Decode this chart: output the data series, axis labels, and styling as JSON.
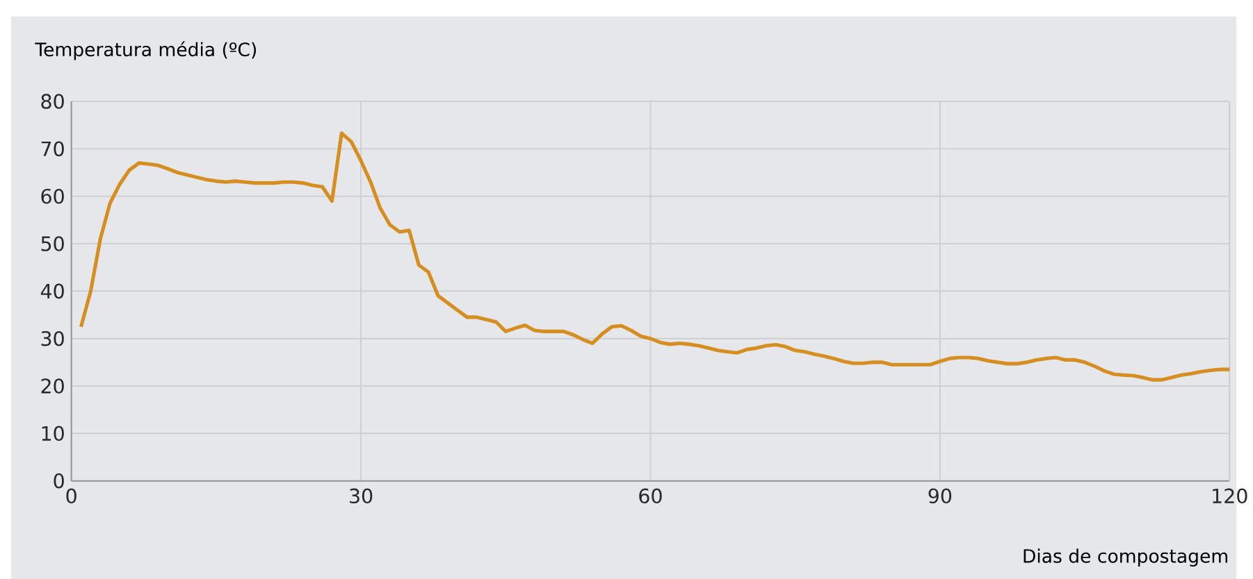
{
  "chart_data": {
    "type": "line",
    "ylabel": "Temperatura média (ºC)",
    "xlabel": "Dias de compostagem",
    "x": [
      1,
      2,
      3,
      4,
      5,
      6,
      7,
      8,
      9,
      10,
      11,
      12,
      13,
      14,
      15,
      16,
      17,
      18,
      19,
      20,
      21,
      22,
      23,
      24,
      25,
      26,
      27,
      28,
      29,
      30,
      31,
      32,
      33,
      34,
      35,
      36,
      37,
      38,
      39,
      40,
      41,
      42,
      43,
      44,
      45,
      46,
      47,
      48,
      49,
      50,
      51,
      52,
      53,
      54,
      55,
      56,
      57,
      58,
      59,
      60,
      61,
      62,
      63,
      64,
      65,
      66,
      67,
      68,
      69,
      70,
      71,
      72,
      73,
      74,
      75,
      76,
      77,
      78,
      79,
      80,
      81,
      82,
      83,
      84,
      85,
      86,
      87,
      88,
      89,
      90,
      91,
      92,
      93,
      94,
      95,
      96,
      97,
      98,
      99,
      100,
      101,
      102,
      103,
      104,
      105,
      106,
      107,
      108,
      109,
      110,
      111,
      112,
      113,
      114,
      115,
      116,
      117,
      118,
      119,
      120
    ],
    "series": [
      {
        "color": "#d58e1f",
        "values": [
          32.5,
          40,
          51,
          58.5,
          62.5,
          65.5,
          67,
          66.8,
          66.5,
          65.8,
          65,
          64.5,
          64,
          63.5,
          63.2,
          63,
          63.2,
          63,
          62.8,
          62.8,
          62.8,
          63,
          63,
          62.8,
          62.3,
          62,
          59,
          73.3,
          71.5,
          67.5,
          63,
          57.5,
          54,
          52.5,
          52.8,
          45.5,
          44,
          39,
          37.5,
          36,
          34.5,
          34.5,
          34,
          33.5,
          31.5,
          32.2,
          32.8,
          31.7,
          31.5,
          31.5,
          31.5,
          30.8,
          29.8,
          29,
          31,
          32.5,
          32.7,
          31.7,
          30.5,
          30,
          29.2,
          28.8,
          29,
          28.8,
          28.5,
          28,
          27.5,
          27.2,
          27,
          27.7,
          28,
          28.5,
          28.7,
          28.3,
          27.5,
          27.2,
          26.7,
          26.3,
          25.8,
          25.2,
          24.8,
          24.8,
          25,
          25,
          24.5,
          24.5,
          24.5,
          24.5,
          24.5,
          25.2,
          25.8,
          26,
          26,
          25.8,
          25.3,
          25,
          24.7,
          24.7,
          25,
          25.5,
          25.8,
          26,
          25.5,
          25.5,
          25,
          24.2,
          23.2,
          22.5,
          22.3,
          22.2,
          21.8,
          21.3,
          21.3,
          21.8,
          22.3,
          22.6,
          23,
          23.3,
          23.5,
          23.5
        ]
      }
    ],
    "xlim": [
      0,
      120
    ],
    "ylim": [
      0,
      80
    ],
    "xticks": [
      0,
      30,
      60,
      90,
      120
    ],
    "yticks": [
      0,
      10,
      20,
      30,
      40,
      50,
      60,
      70,
      80
    ],
    "grid": true,
    "line_style": "solid",
    "marker": "none"
  }
}
